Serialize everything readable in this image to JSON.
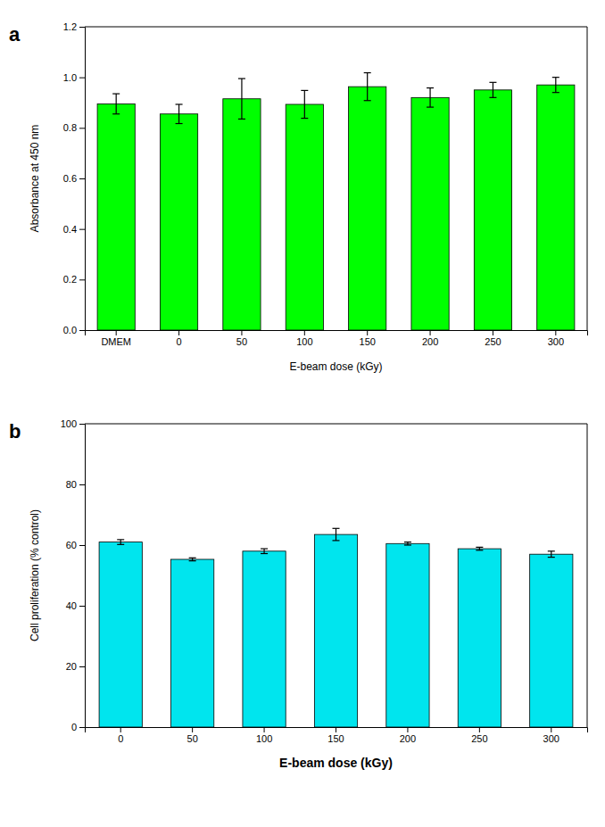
{
  "chart_data": [
    {
      "type": "bar",
      "title": "a",
      "categories": [
        "DMEM",
        "0",
        "50",
        "100",
        "150",
        "200",
        "250",
        "300"
      ],
      "values": [
        0.895,
        0.855,
        0.915,
        0.893,
        0.963,
        0.92,
        0.95,
        0.97
      ],
      "errors": [
        0.04,
        0.038,
        0.08,
        0.055,
        0.055,
        0.038,
        0.03,
        0.03
      ],
      "color": "#00FF00",
      "y_label": "Absorbance at 450 nm",
      "x_label": "E-beam dose (kGy)",
      "ylim": [
        0.0,
        1.2
      ],
      "yticks": [
        {
          "value": 0.0,
          "label": "0.0"
        },
        0.2,
        0.4,
        0.6,
        0.8,
        {
          "value": 1.0,
          "label": "1.0"
        },
        1.2
      ],
      "grid": false
    },
    {
      "type": "bar",
      "title": "b",
      "categories": [
        "0",
        "50",
        "100",
        "150",
        "200",
        "250",
        "300"
      ],
      "values": [
        61.0,
        55.3,
        58.0,
        63.5,
        60.5,
        58.8,
        57.0
      ],
      "errors": [
        0.8,
        0.5,
        0.8,
        2.0,
        0.5,
        0.5,
        1.0
      ],
      "color": "#00E5EE",
      "y_label": "Cell proliferation (% control)",
      "x_label": "E-beam dose (kGy)",
      "ylim": [
        0,
        100
      ],
      "yticks": [
        0,
        20,
        40,
        60,
        80,
        100
      ],
      "grid": false
    }
  ]
}
